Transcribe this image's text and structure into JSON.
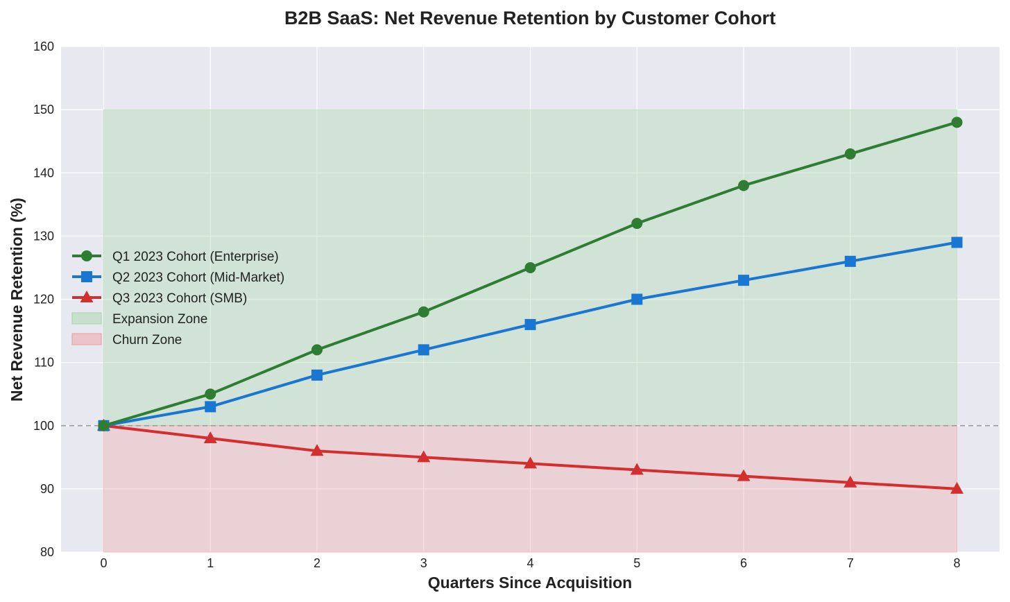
{
  "chart_data": {
    "type": "line",
    "title": "B2B SaaS: Net Revenue Retention by Customer Cohort",
    "xlabel": "Quarters Since Acquisition",
    "ylabel": "Net Revenue Retention (%)",
    "xlim": [
      -0.4,
      8.4
    ],
    "ylim": [
      80,
      160
    ],
    "x": [
      0,
      1,
      2,
      3,
      4,
      5,
      6,
      7,
      8
    ],
    "x_ticks": [
      "0",
      "1",
      "2",
      "3",
      "4",
      "5",
      "6",
      "7",
      "8"
    ],
    "y_ticks": [
      "80",
      "90",
      "100",
      "110",
      "120",
      "130",
      "140",
      "150",
      "160"
    ],
    "grid": true,
    "background": "#e8e8f0",
    "reference_line": {
      "y": 100,
      "color": "#999999",
      "style": "dashed"
    },
    "zones": [
      {
        "name": "Expansion Zone",
        "x_range": [
          0,
          8
        ],
        "y_range": [
          100,
          150
        ],
        "color": "#a5d6a7",
        "opacity": 0.35
      },
      {
        "name": "Churn Zone",
        "x_range": [
          0,
          8
        ],
        "y_range": [
          80,
          100
        ],
        "color": "#ef9a9a",
        "opacity": 0.3
      }
    ],
    "series": [
      {
        "name": "Q1 2023 Cohort (Enterprise)",
        "marker": "circle",
        "color": "#2e7d32",
        "values": [
          100,
          105,
          112,
          118,
          125,
          132,
          138,
          143,
          148
        ]
      },
      {
        "name": "Q2 2023 Cohort (Mid-Market)",
        "marker": "square",
        "color": "#1976d2",
        "values": [
          100,
          103,
          108,
          112,
          116,
          120,
          123,
          126,
          129
        ]
      },
      {
        "name": "Q3 2023 Cohort (SMB)",
        "marker": "triangle",
        "color": "#d32f2f",
        "values": [
          100,
          98,
          96,
          95,
          94,
          93,
          92,
          91,
          90
        ]
      }
    ],
    "legend": {
      "position": "center-left",
      "entries": [
        "Q1 2023 Cohort (Enterprise)",
        "Q2 2023 Cohort (Mid-Market)",
        "Q3 2023 Cohort (SMB)",
        "Expansion Zone",
        "Churn Zone"
      ]
    }
  }
}
